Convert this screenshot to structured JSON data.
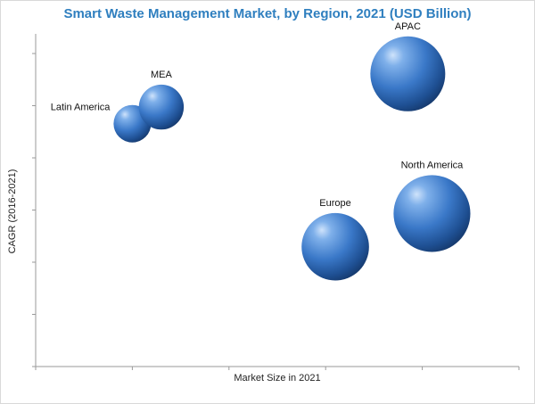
{
  "chart_data": {
    "type": "scatter",
    "title": "Smart Waste Management Market, by Region, 2021 (USD Billion)",
    "xlabel": "Market Size in 2021",
    "ylabel": "CAGR (2016-2021)",
    "axis_tick_labels": false,
    "grid": false,
    "bubble_color": "#3a78c8",
    "points": [
      {
        "label": "Latin America",
        "x": 2.0,
        "y": 7.3,
        "size": 1.0
      },
      {
        "label": "MEA",
        "x": 2.6,
        "y": 7.8,
        "size": 1.2
      },
      {
        "label": "APAC",
        "x": 7.7,
        "y": 8.8,
        "size": 2.0
      },
      {
        "label": "Europe",
        "x": 6.2,
        "y": 3.6,
        "size": 1.8
      },
      {
        "label": "North America",
        "x": 8.2,
        "y": 4.6,
        "size": 2.05
      }
    ],
    "xlim": [
      0,
      10
    ],
    "ylim": [
      0,
      10
    ]
  }
}
